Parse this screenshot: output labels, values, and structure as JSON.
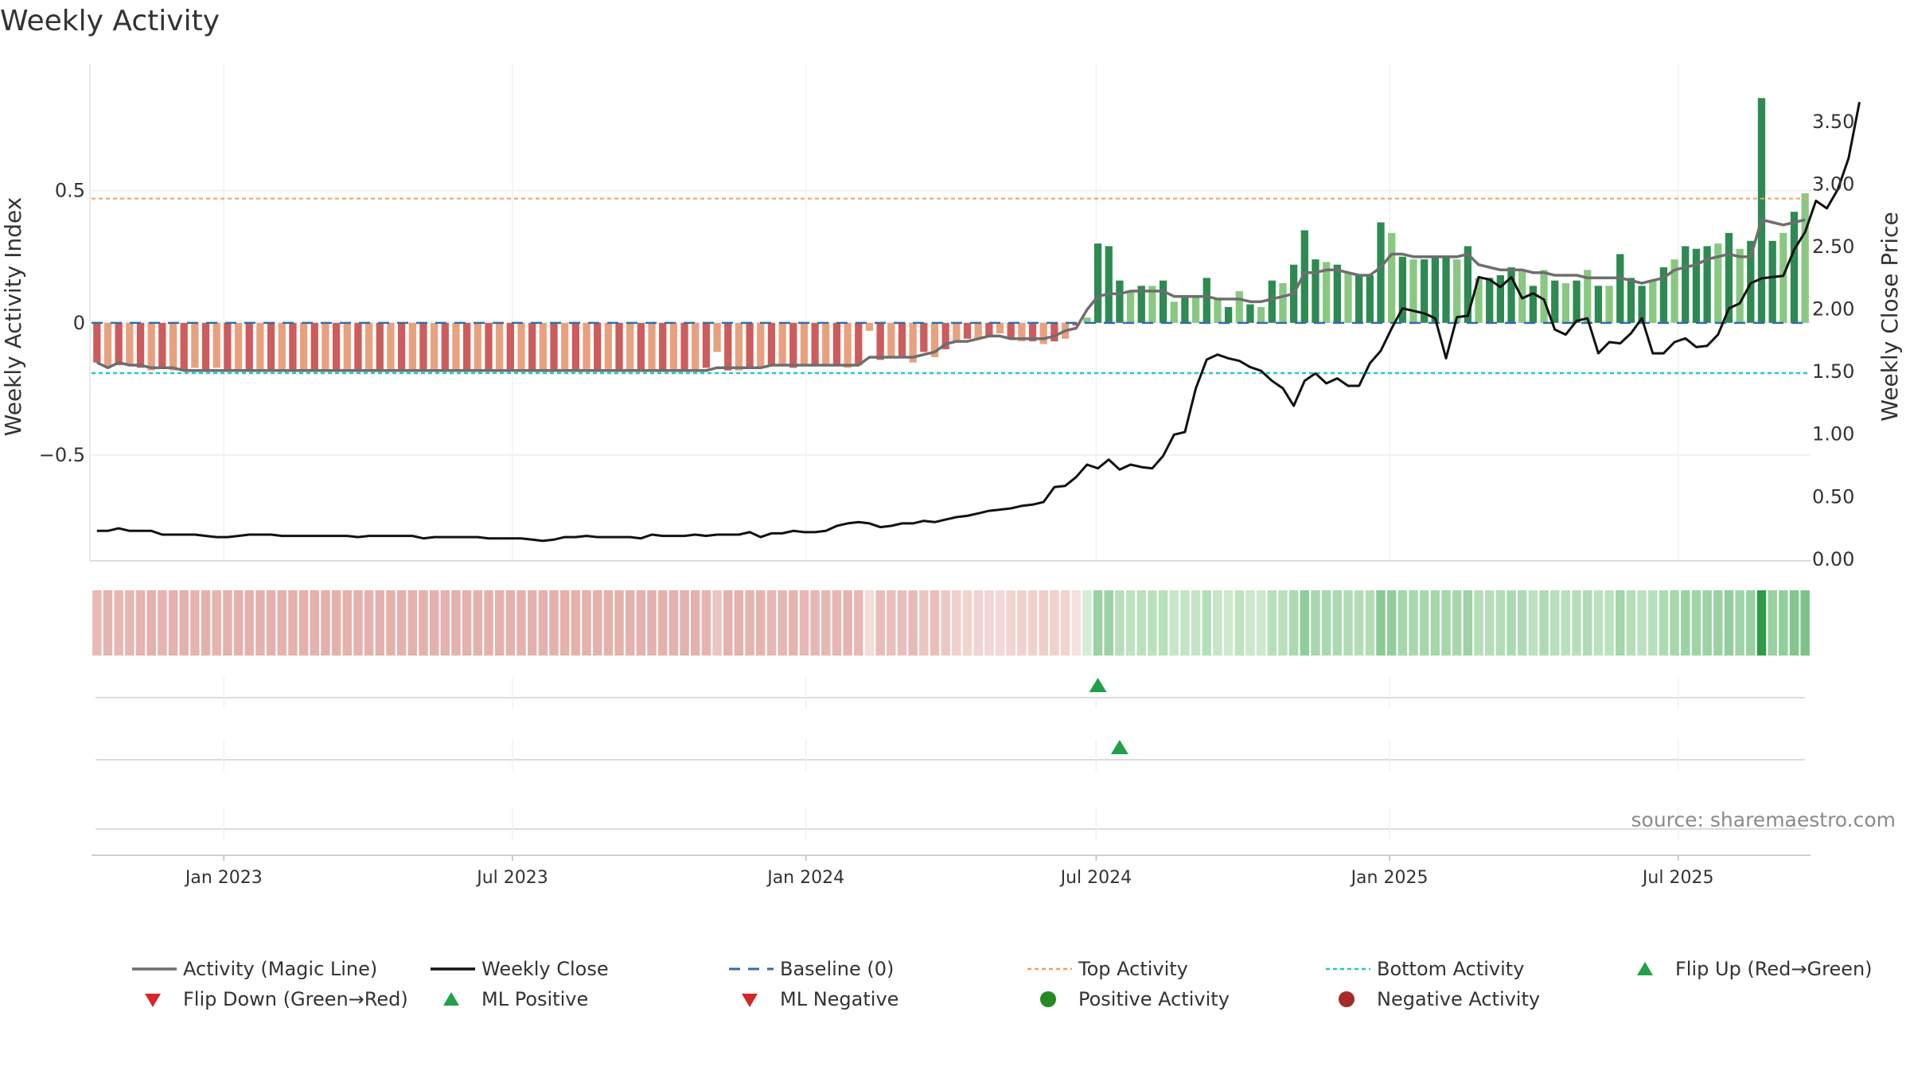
{
  "chart_data": {
    "type": "bar+line",
    "title": "Weekly Activity",
    "source": "source: sharemaestro.com",
    "ylabel_left": "Weekly Activity Index",
    "ylabel_right": "Weekly Close Price",
    "left_ticks": [
      {
        "v": 0.5,
        "label": "0.5"
      },
      {
        "v": 0,
        "label": "0"
      },
      {
        "v": -0.5,
        "label": "−0.5"
      }
    ],
    "right_ticks": [
      {
        "v": 3.5,
        "label": "3.50"
      },
      {
        "v": 3.0,
        "label": "3.00"
      },
      {
        "v": 2.5,
        "label": "2.50"
      },
      {
        "v": 2.0,
        "label": "2.00"
      },
      {
        "v": 1.5,
        "label": "1.50"
      },
      {
        "v": 1.0,
        "label": "1.00"
      },
      {
        "v": 0.5,
        "label": "0.50"
      },
      {
        "v": 0.0,
        "label": "0.00"
      }
    ],
    "left_ylim": [
      -0.9,
      0.92
    ],
    "right_ylim": [
      -0.02,
      3.83
    ],
    "top_activity": 0.47,
    "bottom_activity": -0.19,
    "x_start": "2022-10-10",
    "x_end": "2025-09-22",
    "x_ticks": [
      {
        "date": "2023-01-01",
        "label": "Jan 2023"
      },
      {
        "date": "2023-07-01",
        "label": "Jul 2023"
      },
      {
        "date": "2024-01-01",
        "label": "Jan 2024"
      },
      {
        "date": "2024-07-01",
        "label": "Jul 2024"
      },
      {
        "date": "2025-01-01",
        "label": "Jan 2025"
      },
      {
        "date": "2025-07-01",
        "label": "Jul 2025"
      }
    ],
    "activity": [
      -0.15,
      -0.17,
      -0.16,
      -0.16,
      -0.17,
      -0.18,
      -0.17,
      -0.18,
      -0.18,
      -0.17,
      -0.18,
      -0.17,
      -0.18,
      -0.18,
      -0.18,
      -0.18,
      -0.18,
      -0.18,
      -0.18,
      -0.18,
      -0.18,
      -0.18,
      -0.18,
      -0.18,
      -0.18,
      -0.18,
      -0.18,
      -0.18,
      -0.18,
      -0.18,
      -0.18,
      -0.18,
      -0.18,
      -0.18,
      -0.18,
      -0.18,
      -0.18,
      -0.18,
      -0.18,
      -0.18,
      -0.18,
      -0.18,
      -0.18,
      -0.18,
      -0.18,
      -0.18,
      -0.18,
      -0.18,
      -0.18,
      -0.18,
      -0.18,
      -0.18,
      -0.18,
      -0.18,
      -0.18,
      -0.18,
      -0.17,
      -0.11,
      -0.18,
      -0.18,
      -0.17,
      -0.17,
      -0.16,
      -0.16,
      -0.17,
      -0.16,
      -0.16,
      -0.16,
      -0.16,
      -0.17,
      -0.16,
      -0.03,
      -0.14,
      -0.13,
      -0.13,
      -0.15,
      -0.11,
      -0.13,
      -0.1,
      -0.07,
      -0.06,
      -0.06,
      -0.05,
      -0.04,
      -0.06,
      -0.07,
      -0.07,
      -0.08,
      -0.07,
      -0.06,
      -0.01,
      0.02,
      0.3,
      0.29,
      0.16,
      0.12,
      0.14,
      0.14,
      0.16,
      0.08,
      0.1,
      0.1,
      0.17,
      0.09,
      0.06,
      0.12,
      0.07,
      0.06,
      0.16,
      0.15,
      0.22,
      0.35,
      0.24,
      0.23,
      0.22,
      0.19,
      0.18,
      0.18,
      0.38,
      0.34,
      0.25,
      0.24,
      0.24,
      0.25,
      0.25,
      0.24,
      0.29,
      0.17,
      0.17,
      0.18,
      0.21,
      0.2,
      0.14,
      0.2,
      0.16,
      0.15,
      0.16,
      0.2,
      0.14,
      0.14,
      0.26,
      0.17,
      0.14,
      0.16,
      0.21,
      0.24,
      0.29,
      0.28,
      0.29,
      0.3,
      0.34,
      0.28,
      0.31,
      0.85,
      0.31,
      0.34,
      0.42,
      0.49
    ],
    "magic_line": [
      -0.15,
      -0.17,
      -0.15,
      -0.16,
      -0.16,
      -0.17,
      -0.17,
      -0.17,
      -0.18,
      -0.18,
      -0.18,
      -0.18,
      -0.18,
      -0.18,
      -0.18,
      -0.18,
      -0.18,
      -0.18,
      -0.18,
      -0.18,
      -0.18,
      -0.18,
      -0.18,
      -0.18,
      -0.18,
      -0.18,
      -0.18,
      -0.18,
      -0.18,
      -0.18,
      -0.18,
      -0.18,
      -0.18,
      -0.18,
      -0.18,
      -0.18,
      -0.18,
      -0.18,
      -0.18,
      -0.18,
      -0.18,
      -0.18,
      -0.18,
      -0.18,
      -0.18,
      -0.18,
      -0.18,
      -0.18,
      -0.18,
      -0.18,
      -0.18,
      -0.18,
      -0.18,
      -0.18,
      -0.18,
      -0.18,
      -0.18,
      -0.17,
      -0.17,
      -0.17,
      -0.17,
      -0.17,
      -0.16,
      -0.16,
      -0.16,
      -0.16,
      -0.16,
      -0.16,
      -0.16,
      -0.16,
      -0.16,
      -0.13,
      -0.13,
      -0.13,
      -0.13,
      -0.13,
      -0.12,
      -0.11,
      -0.08,
      -0.07,
      -0.07,
      -0.06,
      -0.05,
      -0.05,
      -0.06,
      -0.06,
      -0.06,
      -0.06,
      -0.05,
      -0.03,
      -0.02,
      0.05,
      0.1,
      0.11,
      0.11,
      0.12,
      0.12,
      0.12,
      0.12,
      0.1,
      0.1,
      0.1,
      0.1,
      0.09,
      0.09,
      0.09,
      0.08,
      0.08,
      0.09,
      0.1,
      0.11,
      0.19,
      0.19,
      0.2,
      0.2,
      0.19,
      0.18,
      0.18,
      0.21,
      0.26,
      0.26,
      0.25,
      0.25,
      0.25,
      0.25,
      0.25,
      0.26,
      0.22,
      0.21,
      0.2,
      0.2,
      0.2,
      0.19,
      0.19,
      0.18,
      0.18,
      0.18,
      0.17,
      0.17,
      0.17,
      0.17,
      0.16,
      0.15,
      0.16,
      0.17,
      0.2,
      0.21,
      0.22,
      0.24,
      0.25,
      0.26,
      0.25,
      0.25,
      0.39,
      0.38,
      0.37,
      0.38,
      0.39
    ],
    "close": [
      0.22,
      0.22,
      0.24,
      0.22,
      0.22,
      0.22,
      0.19,
      0.19,
      0.19,
      0.19,
      0.18,
      0.17,
      0.17,
      0.18,
      0.19,
      0.19,
      0.19,
      0.18,
      0.18,
      0.18,
      0.18,
      0.18,
      0.18,
      0.18,
      0.17,
      0.18,
      0.18,
      0.18,
      0.18,
      0.18,
      0.16,
      0.17,
      0.17,
      0.17,
      0.17,
      0.17,
      0.16,
      0.16,
      0.16,
      0.16,
      0.15,
      0.14,
      0.15,
      0.17,
      0.17,
      0.18,
      0.17,
      0.17,
      0.17,
      0.17,
      0.16,
      0.19,
      0.18,
      0.18,
      0.18,
      0.19,
      0.18,
      0.19,
      0.19,
      0.19,
      0.21,
      0.17,
      0.2,
      0.2,
      0.22,
      0.21,
      0.21,
      0.22,
      0.26,
      0.28,
      0.29,
      0.28,
      0.25,
      0.26,
      0.28,
      0.28,
      0.3,
      0.29,
      0.31,
      0.33,
      0.34,
      0.36,
      0.38,
      0.39,
      0.4,
      0.42,
      0.43,
      0.45,
      0.57,
      0.58,
      0.65,
      0.75,
      0.72,
      0.79,
      0.71,
      0.75,
      0.73,
      0.72,
      0.82,
      0.99,
      1.01,
      1.36,
      1.59,
      1.63,
      1.6,
      1.58,
      1.53,
      1.5,
      1.42,
      1.36,
      1.22,
      1.42,
      1.48,
      1.4,
      1.44,
      1.38,
      1.38,
      1.56,
      1.66,
      1.84,
      2.0,
      1.98,
      1.96,
      1.92,
      1.6,
      1.93,
      1.94,
      2.25,
      2.23,
      2.17,
      2.25,
      2.08,
      2.12,
      2.07,
      1.83,
      1.79,
      1.9,
      1.92,
      1.64,
      1.73,
      1.72,
      1.8,
      1.92,
      1.64,
      1.64,
      1.73,
      1.76,
      1.69,
      1.7,
      1.79,
      2.0,
      2.04,
      2.2,
      2.24,
      2.25,
      2.26,
      2.47,
      2.61,
      2.86,
      2.8,
      2.95,
      3.2,
      3.65
    ],
    "flip_up_markers": [
      {
        "index": 92,
        "row": 1
      },
      {
        "index": 94,
        "row": 2
      }
    ],
    "colors": {
      "neg_dark": "#cd5c5c",
      "neg_light": "#e8a17e",
      "pos_dark": "#2e8a52",
      "pos_light": "#8ac882",
      "magic": "#6e6e6e",
      "close": "#111111",
      "baseline": "#2f6ea8",
      "top": "#f0a060",
      "bottom": "#25c7c7",
      "marker_up": "#2ca02c",
      "marker_down": "#d62728",
      "pos_dot": "#228b22",
      "neg_dot": "#a52a2a"
    }
  },
  "legend": [
    {
      "label": "Activity (Magic Line)",
      "symbol": "line-gray"
    },
    {
      "label": "Weekly Close",
      "symbol": "line-black"
    },
    {
      "label": "Baseline (0)",
      "symbol": "dash-blue"
    },
    {
      "label": "Top Activity",
      "symbol": "dot-orange"
    },
    {
      "label": "Bottom Activity",
      "symbol": "dot-cyan"
    },
    {
      "label": "Flip Up (Red→Green)",
      "symbol": "triangle-up-green"
    },
    {
      "label": "Flip Down (Green→Red)",
      "symbol": "triangle-down-red"
    },
    {
      "label": "ML Positive",
      "symbol": "triangle-up-green"
    },
    {
      "label": "ML Negative",
      "symbol": "triangle-down-red"
    },
    {
      "label": "Positive Activity",
      "symbol": "circle-green"
    },
    {
      "label": "Negative Activity",
      "symbol": "circle-darkred"
    }
  ]
}
